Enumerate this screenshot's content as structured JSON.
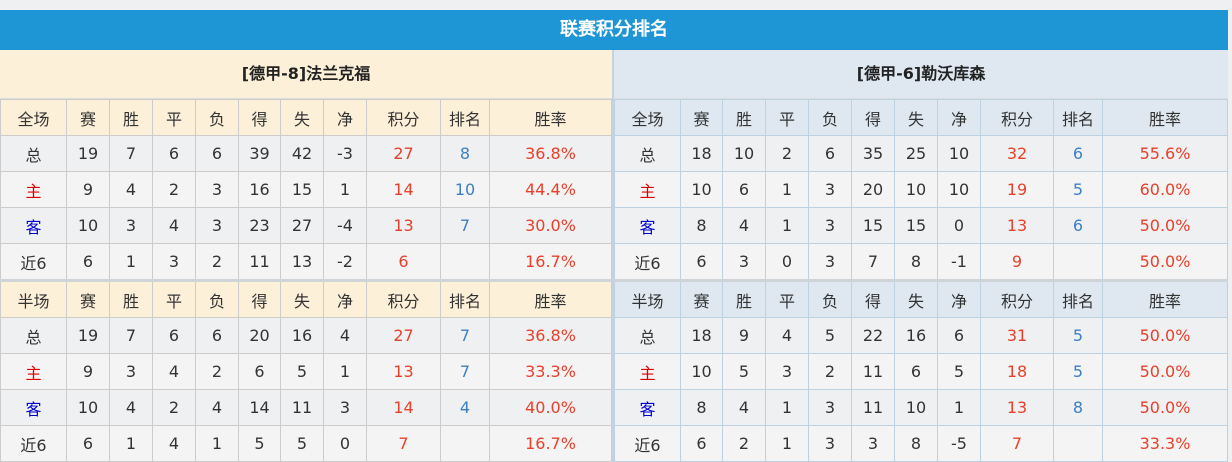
{
  "title": "联赛积分排名",
  "headers_full": [
    "全场",
    "赛",
    "胜",
    "平",
    "负",
    "得",
    "失",
    "净",
    "积分",
    "排名",
    "胜率"
  ],
  "headers_half": [
    "半场",
    "赛",
    "胜",
    "平",
    "负",
    "得",
    "失",
    "净",
    "积分",
    "排名",
    "胜率"
  ],
  "colors": {
    "header_bar": "#1e96d6",
    "points": "#e8402a",
    "rank": "#3d7fc1",
    "home_label": "#dd0000",
    "away_label": "#0000cc"
  },
  "teams": [
    {
      "name": "[德甲-8]法兰克福",
      "full": [
        [
          "总",
          "19",
          "7",
          "6",
          "6",
          "39",
          "42",
          "-3",
          "27",
          "8",
          "36.8%"
        ],
        [
          "主",
          "9",
          "4",
          "2",
          "3",
          "16",
          "15",
          "1",
          "14",
          "10",
          "44.4%"
        ],
        [
          "客",
          "10",
          "3",
          "4",
          "3",
          "23",
          "27",
          "-4",
          "13",
          "7",
          "30.0%"
        ],
        [
          "近6",
          "6",
          "1",
          "3",
          "2",
          "11",
          "13",
          "-2",
          "6",
          "",
          "16.7%"
        ]
      ],
      "half": [
        [
          "总",
          "19",
          "7",
          "6",
          "6",
          "20",
          "16",
          "4",
          "27",
          "7",
          "36.8%"
        ],
        [
          "主",
          "9",
          "3",
          "4",
          "2",
          "6",
          "5",
          "1",
          "13",
          "7",
          "33.3%"
        ],
        [
          "客",
          "10",
          "4",
          "2",
          "4",
          "14",
          "11",
          "3",
          "14",
          "4",
          "40.0%"
        ],
        [
          "近6",
          "6",
          "1",
          "4",
          "1",
          "5",
          "5",
          "0",
          "7",
          "",
          "16.7%"
        ]
      ]
    },
    {
      "name": "[德甲-6]勒沃库森",
      "full": [
        [
          "总",
          "18",
          "10",
          "2",
          "6",
          "35",
          "25",
          "10",
          "32",
          "6",
          "55.6%"
        ],
        [
          "主",
          "10",
          "6",
          "1",
          "3",
          "20",
          "10",
          "10",
          "19",
          "5",
          "60.0%"
        ],
        [
          "客",
          "8",
          "4",
          "1",
          "3",
          "15",
          "15",
          "0",
          "13",
          "6",
          "50.0%"
        ],
        [
          "近6",
          "6",
          "3",
          "0",
          "3",
          "7",
          "8",
          "-1",
          "9",
          "",
          "50.0%"
        ]
      ],
      "half": [
        [
          "总",
          "18",
          "9",
          "4",
          "5",
          "22",
          "16",
          "6",
          "31",
          "5",
          "50.0%"
        ],
        [
          "主",
          "10",
          "5",
          "3",
          "2",
          "11",
          "6",
          "5",
          "18",
          "5",
          "50.0%"
        ],
        [
          "客",
          "8",
          "4",
          "1",
          "3",
          "11",
          "10",
          "1",
          "13",
          "8",
          "50.0%"
        ],
        [
          "近6",
          "6",
          "2",
          "1",
          "3",
          "3",
          "8",
          "-5",
          "7",
          "",
          "33.3%"
        ]
      ]
    }
  ]
}
